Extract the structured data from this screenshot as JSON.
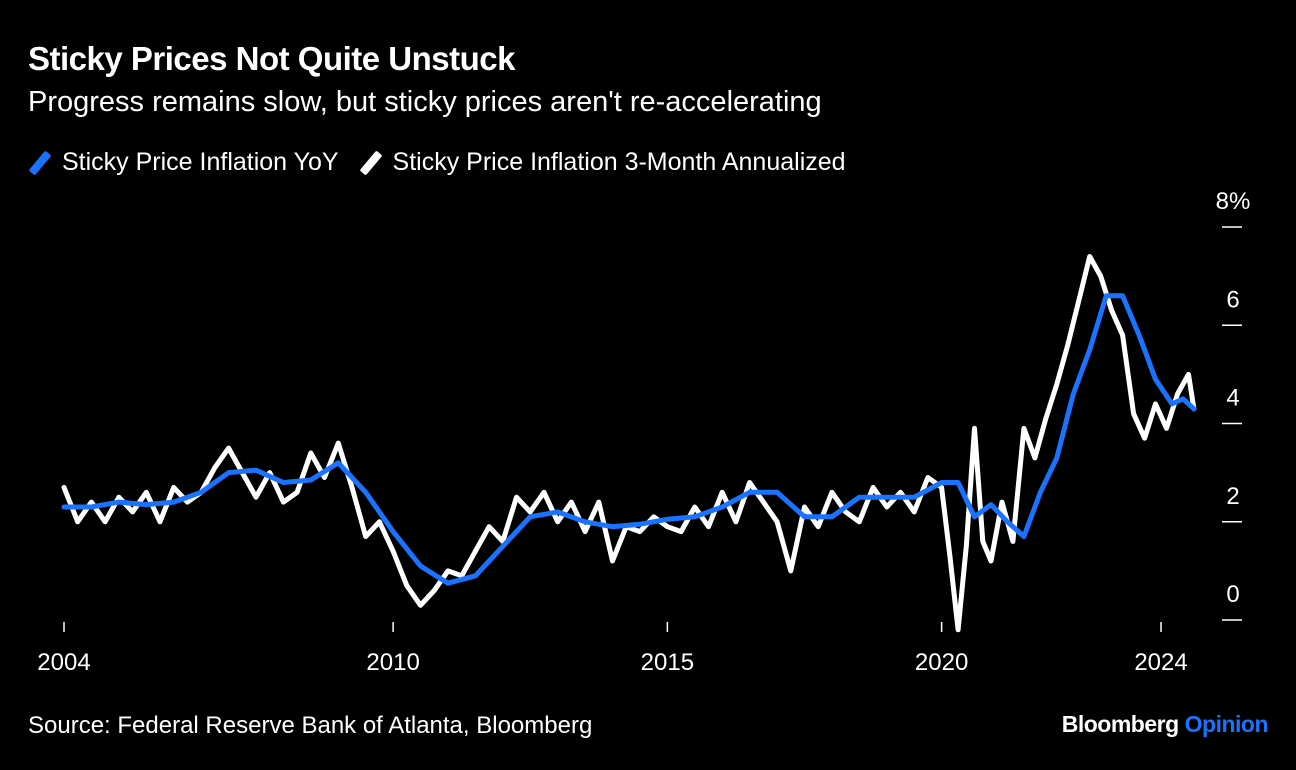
{
  "chart_data": {
    "type": "line",
    "title": "Sticky Prices Not Quite Unstuck",
    "subtitle": "Progress remains slow, but sticky prices aren't re-accelerating",
    "source": "Source: Federal Reserve Bank of Atlanta, Bloomberg",
    "brand": {
      "name": "Bloomberg",
      "suffix": "Opinion"
    },
    "x_ticks": [
      {
        "value": 2004,
        "label": "2004"
      },
      {
        "value": 2010,
        "label": "2010"
      },
      {
        "value": 2015,
        "label": "2015"
      },
      {
        "value": 2020,
        "label": "2020"
      },
      {
        "value": 2024,
        "label": "2024"
      }
    ],
    "y_ticks": [
      {
        "value": 0,
        "label": "0"
      },
      {
        "value": 2,
        "label": "2"
      },
      {
        "value": 4,
        "label": "4"
      },
      {
        "value": 6,
        "label": "6"
      },
      {
        "value": 8,
        "label": "8%"
      }
    ],
    "xlim": [
      2004,
      2024.2
    ],
    "ylim": [
      0,
      8
    ],
    "grid": false,
    "legend_position": "top-left",
    "series": [
      {
        "name": "Sticky Price Inflation YoY",
        "color": "#1a73ff",
        "points": [
          [
            2004.0,
            2.3
          ],
          [
            2004.5,
            2.3
          ],
          [
            2005.0,
            2.4
          ],
          [
            2005.5,
            2.35
          ],
          [
            2006.0,
            2.4
          ],
          [
            2006.5,
            2.6
          ],
          [
            2007.0,
            3.0
          ],
          [
            2007.5,
            3.05
          ],
          [
            2008.0,
            2.8
          ],
          [
            2008.5,
            2.85
          ],
          [
            2009.0,
            3.2
          ],
          [
            2009.5,
            2.6
          ],
          [
            2010.0,
            1.8
          ],
          [
            2010.5,
            1.1
          ],
          [
            2011.0,
            0.75
          ],
          [
            2011.5,
            0.9
          ],
          [
            2012.0,
            1.5
          ],
          [
            2012.5,
            2.1
          ],
          [
            2013.0,
            2.2
          ],
          [
            2013.5,
            2.0
          ],
          [
            2014.0,
            1.9
          ],
          [
            2014.5,
            1.95
          ],
          [
            2015.0,
            2.05
          ],
          [
            2015.5,
            2.1
          ],
          [
            2016.0,
            2.3
          ],
          [
            2016.5,
            2.6
          ],
          [
            2017.0,
            2.6
          ],
          [
            2017.5,
            2.1
          ],
          [
            2018.0,
            2.1
          ],
          [
            2018.5,
            2.5
          ],
          [
            2019.0,
            2.5
          ],
          [
            2019.5,
            2.5
          ],
          [
            2020.0,
            2.8
          ],
          [
            2020.3,
            2.8
          ],
          [
            2020.6,
            2.1
          ],
          [
            2020.9,
            2.35
          ],
          [
            2021.2,
            2.0
          ],
          [
            2021.5,
            1.7
          ],
          [
            2021.8,
            2.6
          ],
          [
            2022.1,
            3.3
          ],
          [
            2022.4,
            4.6
          ],
          [
            2022.7,
            5.5
          ],
          [
            2023.0,
            6.6
          ],
          [
            2023.3,
            6.6
          ],
          [
            2023.6,
            5.8
          ],
          [
            2023.9,
            4.9
          ],
          [
            2024.2,
            4.4
          ],
          [
            2024.4,
            4.5
          ],
          [
            2024.6,
            4.3
          ]
        ]
      },
      {
        "name": "Sticky Price Inflation 3-Month Annualized",
        "color": "#ffffff",
        "points": [
          [
            2004.0,
            2.7
          ],
          [
            2004.25,
            2.0
          ],
          [
            2004.5,
            2.4
          ],
          [
            2004.75,
            2.0
          ],
          [
            2005.0,
            2.5
          ],
          [
            2005.25,
            2.2
          ],
          [
            2005.5,
            2.6
          ],
          [
            2005.75,
            2.0
          ],
          [
            2006.0,
            2.7
          ],
          [
            2006.25,
            2.4
          ],
          [
            2006.5,
            2.6
          ],
          [
            2006.75,
            3.1
          ],
          [
            2007.0,
            3.5
          ],
          [
            2007.25,
            3.0
          ],
          [
            2007.5,
            2.5
          ],
          [
            2007.75,
            3.0
          ],
          [
            2008.0,
            2.4
          ],
          [
            2008.25,
            2.6
          ],
          [
            2008.5,
            3.4
          ],
          [
            2008.75,
            2.9
          ],
          [
            2009.0,
            3.6
          ],
          [
            2009.25,
            2.7
          ],
          [
            2009.5,
            1.7
          ],
          [
            2009.75,
            2.0
          ],
          [
            2010.0,
            1.4
          ],
          [
            2010.25,
            0.7
          ],
          [
            2010.5,
            0.3
          ],
          [
            2010.75,
            0.6
          ],
          [
            2011.0,
            1.0
          ],
          [
            2011.25,
            0.9
          ],
          [
            2011.5,
            1.4
          ],
          [
            2011.75,
            1.9
          ],
          [
            2012.0,
            1.6
          ],
          [
            2012.25,
            2.5
          ],
          [
            2012.5,
            2.2
          ],
          [
            2012.75,
            2.6
          ],
          [
            2013.0,
            2.0
          ],
          [
            2013.25,
            2.4
          ],
          [
            2013.5,
            1.8
          ],
          [
            2013.75,
            2.4
          ],
          [
            2014.0,
            1.2
          ],
          [
            2014.25,
            1.9
          ],
          [
            2014.5,
            1.8
          ],
          [
            2014.75,
            2.1
          ],
          [
            2015.0,
            1.9
          ],
          [
            2015.25,
            1.8
          ],
          [
            2015.5,
            2.3
          ],
          [
            2015.75,
            1.9
          ],
          [
            2016.0,
            2.6
          ],
          [
            2016.25,
            2.0
          ],
          [
            2016.5,
            2.8
          ],
          [
            2016.75,
            2.4
          ],
          [
            2017.0,
            2.0
          ],
          [
            2017.25,
            1.0
          ],
          [
            2017.5,
            2.3
          ],
          [
            2017.75,
            1.9
          ],
          [
            2018.0,
            2.6
          ],
          [
            2018.25,
            2.2
          ],
          [
            2018.5,
            2.0
          ],
          [
            2018.75,
            2.7
          ],
          [
            2019.0,
            2.3
          ],
          [
            2019.25,
            2.6
          ],
          [
            2019.5,
            2.2
          ],
          [
            2019.75,
            2.9
          ],
          [
            2020.0,
            2.7
          ],
          [
            2020.15,
            1.3
          ],
          [
            2020.3,
            -0.2
          ],
          [
            2020.45,
            1.5
          ],
          [
            2020.6,
            3.9
          ],
          [
            2020.75,
            1.6
          ],
          [
            2020.9,
            1.2
          ],
          [
            2021.1,
            2.4
          ],
          [
            2021.3,
            1.6
          ],
          [
            2021.5,
            3.9
          ],
          [
            2021.7,
            3.3
          ],
          [
            2021.9,
            4.1
          ],
          [
            2022.1,
            4.8
          ],
          [
            2022.3,
            5.6
          ],
          [
            2022.5,
            6.5
          ],
          [
            2022.7,
            7.4
          ],
          [
            2022.9,
            7.0
          ],
          [
            2023.1,
            6.3
          ],
          [
            2023.3,
            5.8
          ],
          [
            2023.5,
            4.2
          ],
          [
            2023.7,
            3.7
          ],
          [
            2023.9,
            4.4
          ],
          [
            2024.1,
            3.9
          ],
          [
            2024.3,
            4.6
          ],
          [
            2024.5,
            5.0
          ],
          [
            2024.6,
            4.3
          ]
        ]
      }
    ]
  }
}
